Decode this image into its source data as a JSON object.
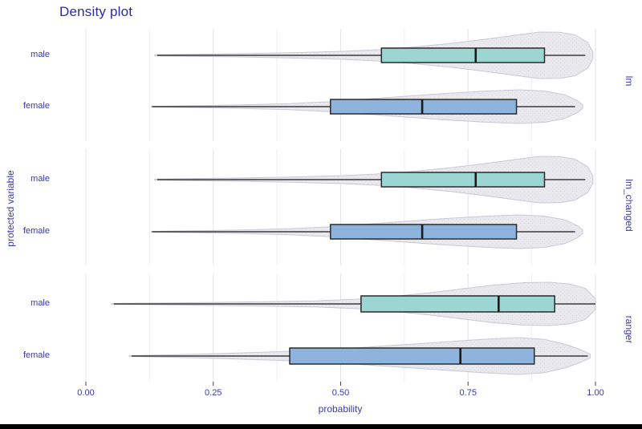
{
  "title": "Density plot",
  "axes": {
    "x_label": "probability",
    "y_label": "protected variable",
    "x_ticks": [
      {
        "label": "0.00",
        "value": 0.0
      },
      {
        "label": "0.25",
        "value": 0.25
      },
      {
        "label": "0.50",
        "value": 0.5
      },
      {
        "label": "0.75",
        "value": 0.75
      },
      {
        "label": "1.00",
        "value": 1.0
      }
    ]
  },
  "colors": {
    "male_box": "#9bd6d2",
    "female_box": "#8eb3dc",
    "violin_fill": "#e9e9ee",
    "violin_dot": "#d9d9e2",
    "violin_stroke": "#c9c9d5",
    "box_stroke": "#2b2b2b",
    "median": "#1a1a1a",
    "whisker": "#3b3b3b",
    "grid_major": "#e3e3ea",
    "grid_minor": "#eeeef3",
    "tick_mark": "#444444",
    "text": "#3939b0",
    "title_text": "#2c2c9e"
  },
  "chart_data": {
    "type": "violin-box-faceted",
    "x_range": [
      0,
      1
    ],
    "minor_grid_values": [
      0.125,
      0.375,
      0.625,
      0.875
    ],
    "facets": [
      {
        "label": "lm",
        "rows": [
          {
            "group": "male",
            "color_key": "male_box",
            "box": {
              "min": 0.14,
              "q1": 0.58,
              "median": 0.765,
              "q3": 0.9,
              "max": 0.98
            },
            "violin": {
              "max_halfwidth": 29,
              "profile": [
                [
                  0.135,
                  0.02
                ],
                [
                  0.2,
                  0.04
                ],
                [
                  0.3,
                  0.07
                ],
                [
                  0.4,
                  0.11
                ],
                [
                  0.5,
                  0.17
                ],
                [
                  0.58,
                  0.25
                ],
                [
                  0.65,
                  0.37
                ],
                [
                  0.72,
                  0.52
                ],
                [
                  0.78,
                  0.68
                ],
                [
                  0.84,
                  0.86
                ],
                [
                  0.89,
                  1.0
                ],
                [
                  0.93,
                  0.99
                ],
                [
                  0.96,
                  0.88
                ],
                [
                  0.985,
                  0.55
                ],
                [
                  0.995,
                  0.15
                ]
              ]
            }
          },
          {
            "group": "female",
            "color_key": "female_box",
            "box": {
              "min": 0.13,
              "q1": 0.48,
              "median": 0.66,
              "q3": 0.845,
              "max": 0.96
            },
            "violin": {
              "max_halfwidth": 21,
              "profile": [
                [
                  0.128,
                  0.02
                ],
                [
                  0.2,
                  0.05
                ],
                [
                  0.3,
                  0.1
                ],
                [
                  0.4,
                  0.18
                ],
                [
                  0.48,
                  0.3
                ],
                [
                  0.55,
                  0.45
                ],
                [
                  0.62,
                  0.6
                ],
                [
                  0.7,
                  0.77
                ],
                [
                  0.78,
                  0.92
                ],
                [
                  0.85,
                  1.0
                ],
                [
                  0.9,
                  0.93
                ],
                [
                  0.94,
                  0.7
                ],
                [
                  0.965,
                  0.35
                ],
                [
                  0.975,
                  0.1
                ]
              ]
            }
          }
        ]
      },
      {
        "label": "lm_changed",
        "rows": [
          {
            "group": "male",
            "color_key": "male_box",
            "box": {
              "min": 0.14,
              "q1": 0.58,
              "median": 0.765,
              "q3": 0.9,
              "max": 0.98
            },
            "violin": {
              "max_halfwidth": 29,
              "profile": [
                [
                  0.135,
                  0.02
                ],
                [
                  0.2,
                  0.04
                ],
                [
                  0.3,
                  0.07
                ],
                [
                  0.4,
                  0.11
                ],
                [
                  0.5,
                  0.17
                ],
                [
                  0.58,
                  0.25
                ],
                [
                  0.65,
                  0.37
                ],
                [
                  0.72,
                  0.52
                ],
                [
                  0.78,
                  0.68
                ],
                [
                  0.84,
                  0.86
                ],
                [
                  0.89,
                  1.0
                ],
                [
                  0.93,
                  0.99
                ],
                [
                  0.96,
                  0.88
                ],
                [
                  0.985,
                  0.55
                ],
                [
                  0.995,
                  0.15
                ]
              ]
            }
          },
          {
            "group": "female",
            "color_key": "female_box",
            "box": {
              "min": 0.13,
              "q1": 0.48,
              "median": 0.66,
              "q3": 0.845,
              "max": 0.96
            },
            "violin": {
              "max_halfwidth": 21,
              "profile": [
                [
                  0.128,
                  0.02
                ],
                [
                  0.2,
                  0.05
                ],
                [
                  0.3,
                  0.1
                ],
                [
                  0.4,
                  0.18
                ],
                [
                  0.48,
                  0.3
                ],
                [
                  0.55,
                  0.45
                ],
                [
                  0.62,
                  0.6
                ],
                [
                  0.7,
                  0.77
                ],
                [
                  0.78,
                  0.92
                ],
                [
                  0.85,
                  1.0
                ],
                [
                  0.9,
                  0.93
                ],
                [
                  0.94,
                  0.7
                ],
                [
                  0.965,
                  0.35
                ],
                [
                  0.975,
                  0.1
                ]
              ]
            }
          }
        ]
      },
      {
        "label": "ranger",
        "rows": [
          {
            "group": "male",
            "color_key": "male_box",
            "box": {
              "min": 0.055,
              "q1": 0.54,
              "median": 0.81,
              "q3": 0.92,
              "max": 1.0
            },
            "violin": {
              "max_halfwidth": 27,
              "profile": [
                [
                  0.05,
                  0.02
                ],
                [
                  0.15,
                  0.04
                ],
                [
                  0.25,
                  0.07
                ],
                [
                  0.35,
                  0.1
                ],
                [
                  0.45,
                  0.14
                ],
                [
                  0.53,
                  0.22
                ],
                [
                  0.6,
                  0.34
                ],
                [
                  0.67,
                  0.5
                ],
                [
                  0.74,
                  0.7
                ],
                [
                  0.8,
                  0.87
                ],
                [
                  0.86,
                  0.98
                ],
                [
                  0.91,
                  1.0
                ],
                [
                  0.95,
                  0.92
                ],
                [
                  0.98,
                  0.72
                ],
                [
                  1.0,
                  0.25
                ]
              ]
            }
          },
          {
            "group": "female",
            "color_key": "female_box",
            "box": {
              "min": 0.09,
              "q1": 0.4,
              "median": 0.735,
              "q3": 0.88,
              "max": 0.985
            },
            "violin": {
              "max_halfwidth": 23,
              "profile": [
                [
                  0.085,
                  0.02
                ],
                [
                  0.18,
                  0.08
                ],
                [
                  0.28,
                  0.15
                ],
                [
                  0.38,
                  0.24
                ],
                [
                  0.47,
                  0.35
                ],
                [
                  0.55,
                  0.48
                ],
                [
                  0.63,
                  0.63
                ],
                [
                  0.71,
                  0.78
                ],
                [
                  0.78,
                  0.91
                ],
                [
                  0.85,
                  1.0
                ],
                [
                  0.9,
                  0.9
                ],
                [
                  0.94,
                  0.65
                ],
                [
                  0.97,
                  0.35
                ],
                [
                  0.99,
                  0.1
                ]
              ]
            }
          }
        ]
      }
    ]
  }
}
